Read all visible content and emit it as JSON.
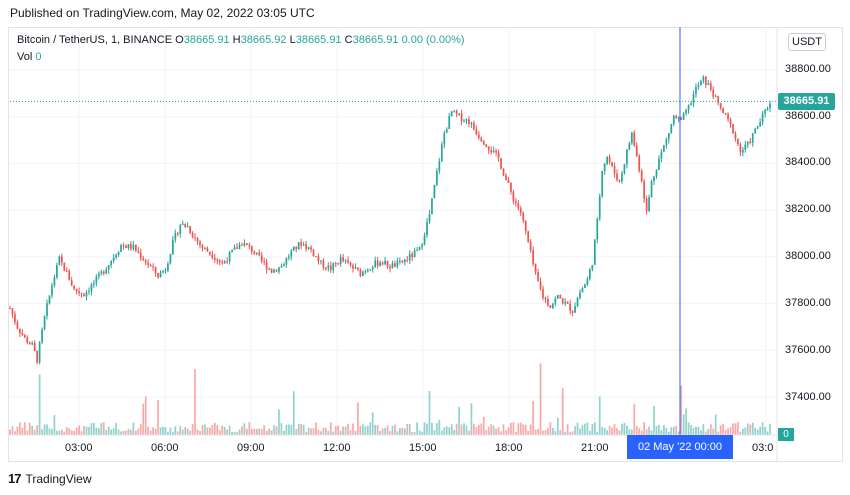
{
  "header": {
    "published": "Published on TradingView.com, May 02, 2022 03:05 UTC"
  },
  "legend": {
    "symbol": "Bitcoin / TetherUS, 1, BINANCE",
    "o_label": "O",
    "o_value": "38665.91",
    "h_label": "H",
    "h_value": "38665.92",
    "l_label": "L",
    "l_value": "38665.91",
    "c_label": "C",
    "c_value": "38665.91",
    "change": "0.00 (0.00%)",
    "vol_label": "Vol",
    "vol_value": "0"
  },
  "currency_button": "USDT",
  "price_axis": {
    "labels": [
      "38800.00",
      "38600.00",
      "38400.00",
      "38200.00",
      "38000.00",
      "37800.00",
      "37600.00",
      "37400.00"
    ],
    "last_price": "38665.91",
    "last_volume": "0"
  },
  "time_axis": {
    "labels": [
      "03:00",
      "06:00",
      "09:00",
      "12:00",
      "15:00",
      "18:00",
      "21:00",
      "03:0"
    ],
    "crosshair_label": "02 May '22   00:00"
  },
  "branding": {
    "logo_text": "TradingView",
    "logo_mark": "17"
  },
  "colors": {
    "up": "#26a69a",
    "down": "#ef5350",
    "crosshair": "#2962ff",
    "price_line": "#26a69a",
    "grid": "#f0f3fa"
  },
  "chart_data": {
    "type": "candlestick",
    "symbol": "BTC/USDT",
    "interval": "1",
    "ylim": [
      37300,
      38880
    ],
    "x_ticks": [
      "03:00",
      "06:00",
      "09:00",
      "12:00",
      "15:00",
      "18:00",
      "21:00",
      "03:0"
    ],
    "y_ticks": [
      38800,
      38600,
      38400,
      38200,
      38000,
      37800,
      37600,
      37400
    ],
    "last_price": 38665.91,
    "crosshair_time": "02 May '22 00:00",
    "price_path": [
      [
        0,
        37780
      ],
      [
        3,
        37700
      ],
      [
        6,
        37650
      ],
      [
        9,
        37620
      ],
      [
        11,
        37560
      ],
      [
        14,
        37740
      ],
      [
        17,
        37880
      ],
      [
        20,
        37990
      ],
      [
        23,
        37930
      ],
      [
        26,
        37860
      ],
      [
        30,
        37840
      ],
      [
        35,
        37900
      ],
      [
        40,
        37970
      ],
      [
        45,
        38050
      ],
      [
        50,
        38040
      ],
      [
        55,
        37980
      ],
      [
        60,
        37920
      ],
      [
        63,
        37950
      ],
      [
        66,
        38060
      ],
      [
        69,
        38140
      ],
      [
        72,
        38130
      ],
      [
        75,
        38080
      ],
      [
        78,
        38040
      ],
      [
        82,
        38010
      ],
      [
        86,
        37970
      ],
      [
        90,
        38020
      ],
      [
        94,
        38060
      ],
      [
        98,
        38030
      ],
      [
        102,
        37980
      ],
      [
        106,
        37940
      ],
      [
        110,
        37960
      ],
      [
        114,
        38020
      ],
      [
        118,
        38060
      ],
      [
        122,
        38030
      ],
      [
        126,
        37970
      ],
      [
        130,
        37950
      ],
      [
        134,
        37990
      ],
      [
        138,
        37960
      ],
      [
        142,
        37930
      ],
      [
        146,
        37960
      ],
      [
        150,
        37980
      ],
      [
        154,
        37960
      ],
      [
        158,
        37970
      ],
      [
        162,
        38000
      ],
      [
        166,
        38030
      ],
      [
        170,
        38180
      ],
      [
        173,
        38360
      ],
      [
        176,
        38530
      ],
      [
        179,
        38620
      ],
      [
        182,
        38600
      ],
      [
        186,
        38580
      ],
      [
        190,
        38520
      ],
      [
        194,
        38470
      ],
      [
        198,
        38420
      ],
      [
        201,
        38330
      ],
      [
        204,
        38250
      ],
      [
        207,
        38190
      ],
      [
        210,
        38060
      ],
      [
        213,
        37920
      ],
      [
        216,
        37830
      ],
      [
        219,
        37790
      ],
      [
        222,
        37830
      ],
      [
        225,
        37800
      ],
      [
        228,
        37770
      ],
      [
        231,
        37850
      ],
      [
        234,
        37900
      ],
      [
        236,
        37980
      ],
      [
        238,
        38150
      ],
      [
        240,
        38380
      ],
      [
        242,
        38430
      ],
      [
        244,
        38380
      ],
      [
        247,
        38320
      ],
      [
        250,
        38450
      ],
      [
        252,
        38530
      ],
      [
        254,
        38430
      ],
      [
        256,
        38330
      ],
      [
        258,
        38190
      ],
      [
        260,
        38320
      ],
      [
        263,
        38420
      ],
      [
        266,
        38500
      ],
      [
        269,
        38600
      ],
      [
        272,
        38580
      ],
      [
        275,
        38640
      ],
      [
        278,
        38720
      ],
      [
        281,
        38760
      ],
      [
        284,
        38720
      ],
      [
        287,
        38650
      ],
      [
        290,
        38600
      ],
      [
        293,
        38540
      ],
      [
        296,
        38450
      ],
      [
        299,
        38480
      ],
      [
        302,
        38540
      ],
      [
        305,
        38600
      ],
      [
        308,
        38665.91
      ]
    ],
    "volume_spikes": [
      [
        12,
        0.55
      ],
      [
        55,
        0.35
      ],
      [
        75,
        0.6
      ],
      [
        170,
        0.4
      ],
      [
        215,
        0.65
      ],
      [
        239,
        0.35
      ],
      [
        272,
        0.45
      ]
    ]
  }
}
